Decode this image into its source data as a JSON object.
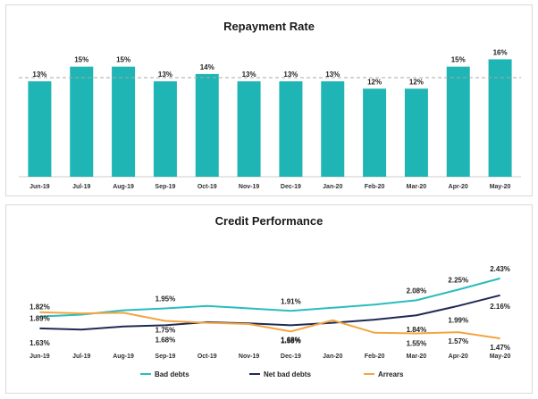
{
  "chart_data": [
    {
      "type": "bar",
      "title": "Repayment Rate",
      "categories": [
        "Jun-19",
        "Jul-19",
        "Aug-19",
        "Sep-19",
        "Oct-19",
        "Nov-19",
        "Dec-19",
        "Jan-20",
        "Feb-20",
        "Mar-20",
        "Apr-20",
        "May-20"
      ],
      "values": [
        13,
        15,
        15,
        13,
        14,
        13,
        13,
        13,
        12,
        12,
        15,
        16
      ],
      "data_labels": [
        "13%",
        "15%",
        "15%",
        "13%",
        "14%",
        "13%",
        "13%",
        "13%",
        "12%",
        "12%",
        "15%",
        "16%"
      ],
      "reference_line": 13.5,
      "ylim": [
        0,
        18
      ],
      "bar_color": "#1fb5b5",
      "reference_color": "#aaaaaa",
      "legend": false,
      "grid": false
    },
    {
      "type": "line",
      "title": "Credit Performance",
      "categories": [
        "Jun-19",
        "Jul-19",
        "Aug-19",
        "Sep-19",
        "Oct-19",
        "Nov-19",
        "Dec-19",
        "Jan-20",
        "Feb-20",
        "Mar-20",
        "Apr-20",
        "May-20"
      ],
      "ylim": [
        0,
        3.2
      ],
      "legend_position": "bottom",
      "grid": false,
      "series": [
        {
          "name": "Bad debts",
          "color": "#2bbcbc",
          "values": [
            1.82,
            1.85,
            1.92,
            1.95,
            1.99,
            1.95,
            1.91,
            1.96,
            2.01,
            2.08,
            2.25,
            2.43
          ],
          "labels": [
            {
              "i": 0,
              "text": "1.82%"
            },
            {
              "i": 3,
              "text": "1.95%"
            },
            {
              "i": 6,
              "text": "1.91%"
            },
            {
              "i": 9,
              "text": "2.08%"
            },
            {
              "i": 10,
              "text": "2.25%"
            },
            {
              "i": 11,
              "text": "2.43%"
            }
          ]
        },
        {
          "name": "Net bad debts",
          "color": "#1f2a55",
          "values": [
            1.63,
            1.61,
            1.66,
            1.68,
            1.73,
            1.71,
            1.68,
            1.72,
            1.77,
            1.84,
            1.99,
            2.16
          ],
          "labels": [
            {
              "i": 0,
              "text": "1.63%"
            },
            {
              "i": 3,
              "text": "1.68%"
            },
            {
              "i": 6,
              "text": "1.68%"
            },
            {
              "i": 9,
              "text": "1.84%"
            },
            {
              "i": 10,
              "text": "1.99%"
            },
            {
              "i": 11,
              "text": "2.16%"
            }
          ]
        },
        {
          "name": "Arrears",
          "color": "#f2a541",
          "values": [
            1.89,
            1.87,
            1.88,
            1.75,
            1.72,
            1.7,
            1.58,
            1.76,
            1.56,
            1.55,
            1.57,
            1.47
          ],
          "labels": [
            {
              "i": 0,
              "text": "1.89%"
            },
            {
              "i": 3,
              "text": "1.75%"
            },
            {
              "i": 6,
              "text": "1.58%"
            },
            {
              "i": 9,
              "text": "1.55%"
            },
            {
              "i": 10,
              "text": "1.57%"
            },
            {
              "i": 11,
              "text": "1.47%"
            }
          ]
        }
      ]
    }
  ]
}
